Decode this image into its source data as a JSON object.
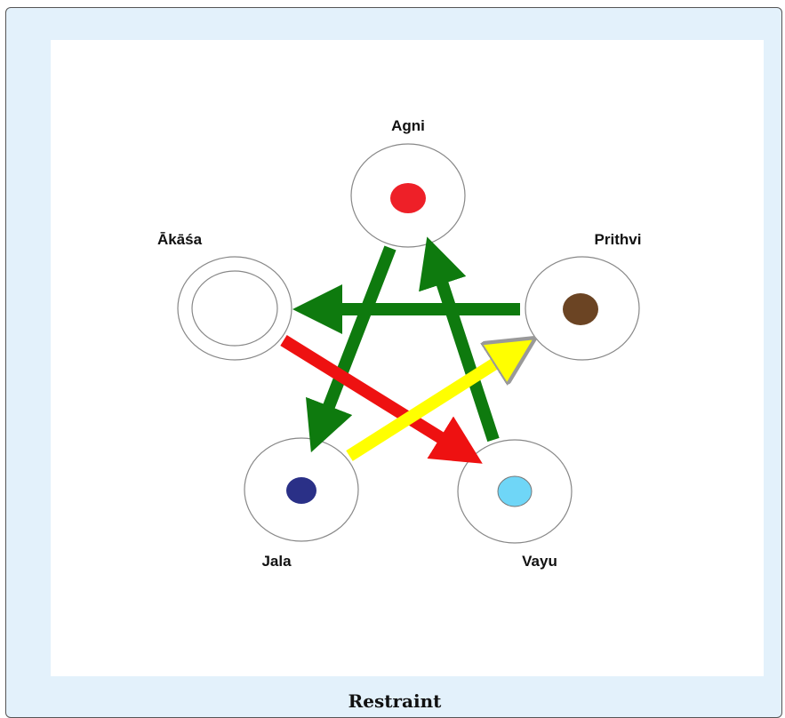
{
  "nodes": [
    {
      "label": "Agni"
    },
    {
      "label": "Prithvi"
    },
    {
      "label": "Vayu"
    },
    {
      "label": "Jala"
    },
    {
      "label": "Ākāśa"
    }
  ],
  "caption": "Restraint"
}
